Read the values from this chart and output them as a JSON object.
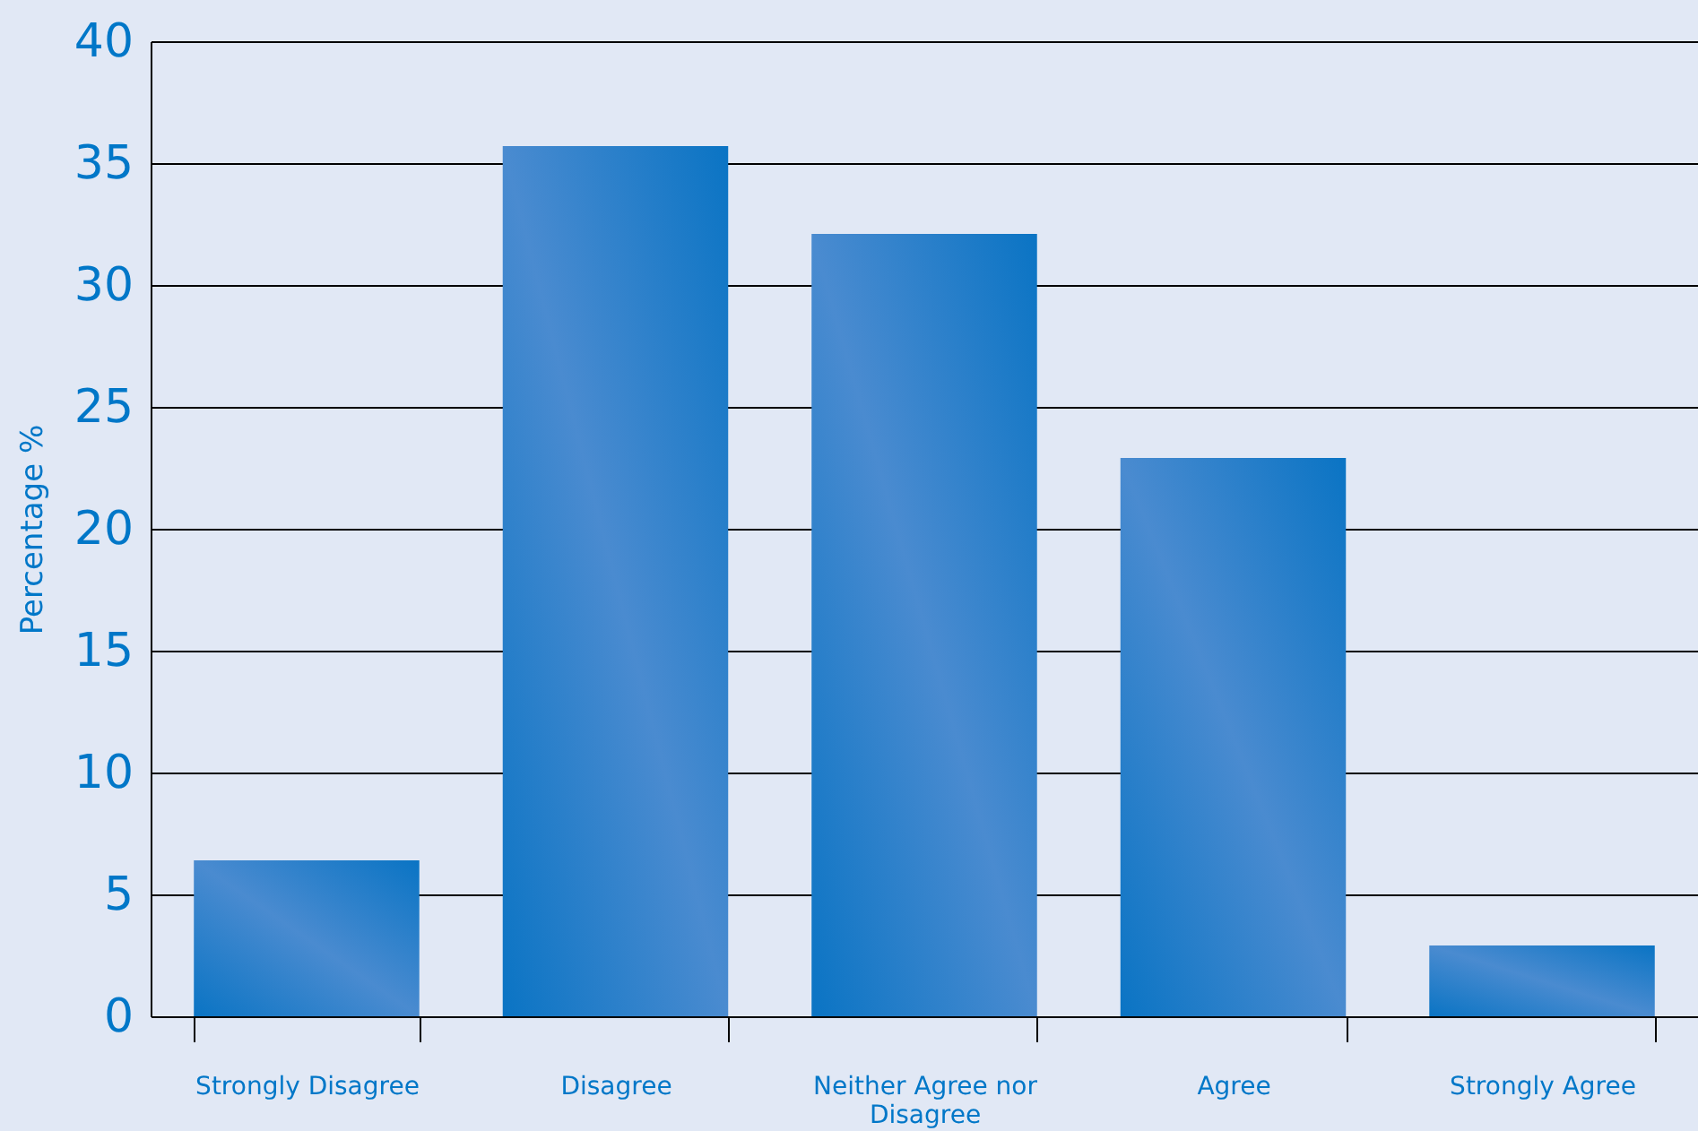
{
  "chart_data": {
    "type": "bar",
    "ylabel": "Percentage %",
    "categories": [
      "Strongly Disagree",
      "Disagree",
      "Neither Agree nor Disagree",
      "Agree",
      "Strongly Agree"
    ],
    "values": [
      6.4,
      35.7,
      32.1,
      22.9,
      2.9
    ],
    "color": "#4a8bd0",
    "ylim": [
      0,
      40
    ],
    "yticks": [
      0,
      5,
      10,
      15,
      20,
      25,
      30,
      35,
      40
    ],
    "grid": "y"
  }
}
